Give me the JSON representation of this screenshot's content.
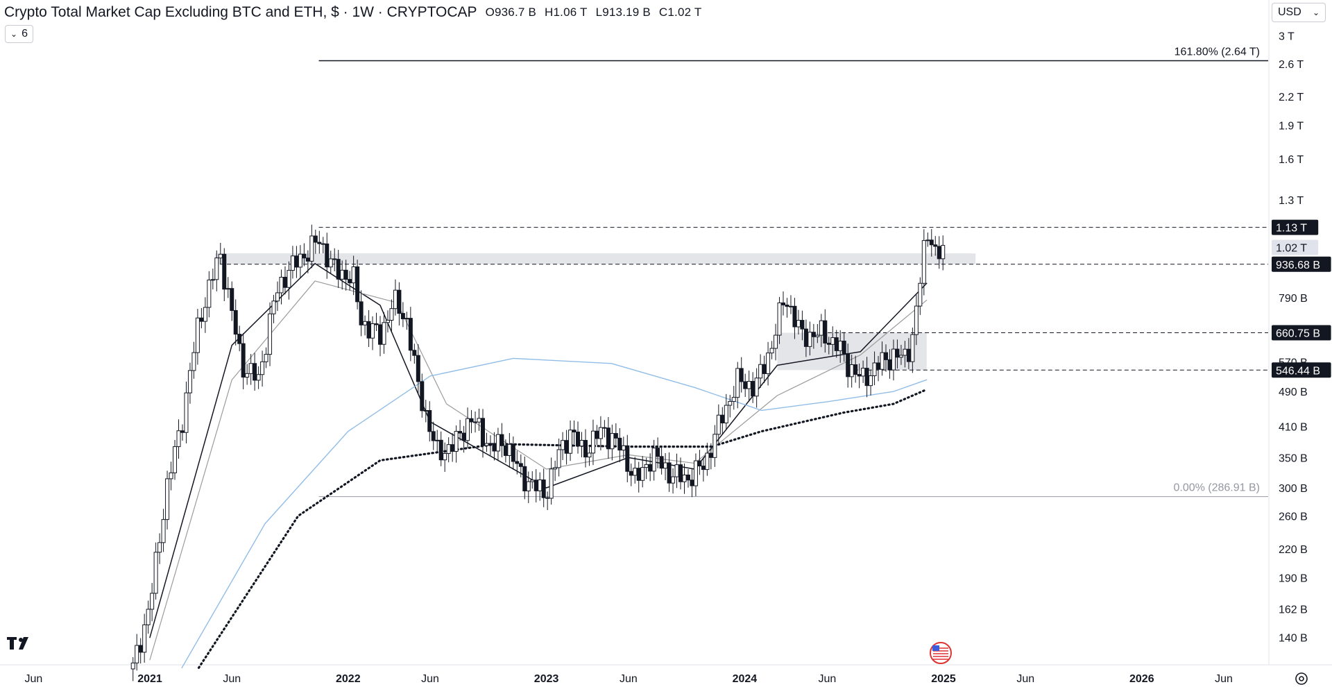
{
  "header": {
    "title": "Crypto Total Market Cap Excluding BTC and ETH, $ · 1W · CRYPTOCAP",
    "open": "O936.7 B",
    "high": "H1.06 T",
    "low": "L913.19 B",
    "close": "C1.02 T"
  },
  "indicators_count": "6",
  "currency": "USD",
  "logo": "TV",
  "chart_data": {
    "type": "candlestick",
    "title": "Crypto Total Market Cap Excluding BTC and ETH",
    "interval": "1W",
    "y_scale": "log",
    "y_unit": "USD",
    "y_ticks": [
      "3 T",
      "2.6 T",
      "2.2 T",
      "1.9 T",
      "1.6 T",
      "1.3 T",
      "790 B",
      "570 B",
      "490 B",
      "410 B",
      "350 B",
      "300 B",
      "260 B",
      "220 B",
      "190 B",
      "162 B",
      "140 B"
    ],
    "x_ticks": [
      "Jun",
      "2021",
      "Jun",
      "2022",
      "Jun",
      "2023",
      "Jun",
      "2024",
      "Jun",
      "2025",
      "Jun",
      "2026",
      "Jun"
    ],
    "x_range": [
      "2020-05",
      "2026-07"
    ],
    "y_range_billions": [
      120,
      3300
    ],
    "price_tags": [
      {
        "label": "1.13 T",
        "value": 1130,
        "style": "dark"
      },
      {
        "label": "1.02 T",
        "value": 1020,
        "style": "light"
      },
      {
        "label": "936.68 B",
        "value": 936.68,
        "style": "dark"
      },
      {
        "label": "660.75 B",
        "value": 660.75,
        "style": "dark"
      },
      {
        "label": "546.44 B",
        "value": 546.44,
        "style": "dark"
      }
    ],
    "fib_levels": [
      {
        "label": "161.80% (2.64 T)",
        "value": 2640
      },
      {
        "label": "0.00% (286.91 B)",
        "value": 286.91
      }
    ],
    "horizontal_levels_billions": [
      1130,
      936.68,
      660.75,
      546.44
    ],
    "zones": [
      {
        "from": "2021-05",
        "to": "2025-03",
        "low": 936.68,
        "high": 990
      },
      {
        "from": "2024-03",
        "to": "2024-12",
        "low": 546.44,
        "high": 660.75
      }
    ],
    "approx_weekly_close_path_billions": [
      [
        "2020-12-01",
        120
      ],
      [
        "2021-01-01",
        165
      ],
      [
        "2021-02-01",
        300
      ],
      [
        "2021-03-01",
        420
      ],
      [
        "2021-04-01",
        700
      ],
      [
        "2021-05-10",
        990
      ],
      [
        "2021-06-20",
        560
      ],
      [
        "2021-07-20",
        520
      ],
      [
        "2021-08-20",
        800
      ],
      [
        "2021-09-10",
        900
      ],
      [
        "2021-11-08",
        1060
      ],
      [
        "2021-12-10",
        900
      ],
      [
        "2022-01-10",
        880
      ],
      [
        "2022-01-25",
        700
      ],
      [
        "2022-03-01",
        650
      ],
      [
        "2022-03-25",
        780
      ],
      [
        "2022-04-20",
        700
      ],
      [
        "2022-05-10",
        500
      ],
      [
        "2022-06-15",
        355
      ],
      [
        "2022-07-20",
        380
      ],
      [
        "2022-08-15",
        430
      ],
      [
        "2022-09-20",
        370
      ],
      [
        "2022-10-20",
        375
      ],
      [
        "2022-11-15",
        320
      ],
      [
        "2022-12-30",
        290
      ],
      [
        "2023-01-25",
        360
      ],
      [
        "2023-02-15",
        400
      ],
      [
        "2023-03-10",
        360
      ],
      [
        "2023-04-15",
        405
      ],
      [
        "2023-05-20",
        365
      ],
      [
        "2023-06-15",
        310
      ],
      [
        "2023-07-15",
        355
      ],
      [
        "2023-08-20",
        320
      ],
      [
        "2023-09-20",
        315
      ],
      [
        "2023-10-20",
        340
      ],
      [
        "2023-11-20",
        430
      ],
      [
        "2023-12-20",
        520
      ],
      [
        "2024-01-20",
        500
      ],
      [
        "2024-02-20",
        620
      ],
      [
        "2024-03-15",
        800
      ],
      [
        "2024-04-15",
        650
      ],
      [
        "2024-05-20",
        660
      ],
      [
        "2024-06-20",
        620
      ],
      [
        "2024-07-10",
        560
      ],
      [
        "2024-08-05",
        520
      ],
      [
        "2024-09-01",
        560
      ],
      [
        "2024-10-01",
        590
      ],
      [
        "2024-10-25",
        580
      ],
      [
        "2024-11-10",
        700
      ],
      [
        "2024-11-25",
        1000
      ],
      [
        "2024-12-08",
        1130
      ],
      [
        "2024-12-20",
        940
      ],
      [
        "2024-12-31",
        1020
      ]
    ],
    "moving_averages": [
      {
        "style": "black-thin",
        "points": [
          [
            "2021-01",
            140
          ],
          [
            "2021-06",
            620
          ],
          [
            "2021-11",
            940
          ],
          [
            "2022-03",
            760
          ],
          [
            "2022-06",
            420
          ],
          [
            "2023-01",
            300
          ],
          [
            "2023-06",
            350
          ],
          [
            "2023-10",
            330
          ],
          [
            "2024-03",
            560
          ],
          [
            "2024-08",
            600
          ],
          [
            "2024-12",
            850
          ]
        ]
      },
      {
        "style": "gray-thin",
        "points": [
          [
            "2021-01",
            125
          ],
          [
            "2021-06",
            520
          ],
          [
            "2021-11",
            860
          ],
          [
            "2022-04",
            770
          ],
          [
            "2022-07",
            460
          ],
          [
            "2023-01",
            330
          ],
          [
            "2023-06",
            355
          ],
          [
            "2023-10",
            340
          ],
          [
            "2024-03",
            480
          ],
          [
            "2024-08",
            590
          ],
          [
            "2024-12",
            780
          ]
        ]
      },
      {
        "style": "blue-thin",
        "points": [
          [
            "2021-03",
            120
          ],
          [
            "2021-08",
            250
          ],
          [
            "2022-01",
            400
          ],
          [
            "2022-06",
            530
          ],
          [
            "2022-11",
            580
          ],
          [
            "2023-05",
            565
          ],
          [
            "2023-10",
            500
          ],
          [
            "2024-02",
            445
          ],
          [
            "2024-06",
            465
          ],
          [
            "2024-10",
            490
          ],
          [
            "2024-12",
            520
          ]
        ]
      },
      {
        "style": "black-dotted",
        "points": [
          [
            "2021-04",
            120
          ],
          [
            "2021-10",
            260
          ],
          [
            "2022-03",
            345
          ],
          [
            "2022-10",
            375
          ],
          [
            "2023-06",
            370
          ],
          [
            "2023-11",
            370
          ],
          [
            "2024-02",
            400
          ],
          [
            "2024-07",
            440
          ],
          [
            "2024-10",
            460
          ],
          [
            "2024-12",
            495
          ]
        ]
      }
    ]
  }
}
